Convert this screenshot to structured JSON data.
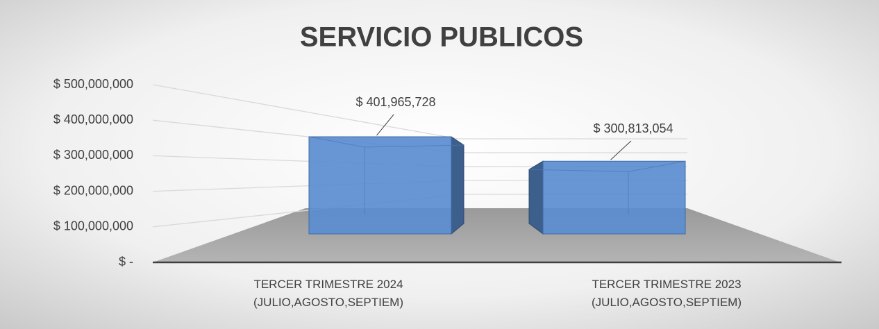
{
  "chart_data": {
    "type": "bar3d",
    "title": "SERVICIO PUBLICOS",
    "categories": [
      "TERCER TRIMESTRE 2024\n(JULIO,AGOSTO,SEPTIEM)",
      "TERCER TRIMESTRE 2023\n(JULIO,AGOSTO,SEPTIEM)"
    ],
    "values": [
      401965728,
      300813054
    ],
    "value_labels": [
      "$ 401,965,728",
      "$ 300,813,054"
    ],
    "color": "#5b8dd0",
    "ylim": [
      0,
      500000000
    ],
    "yticks": [
      {
        "value": 0,
        "label": "$ -"
      },
      {
        "value": 100000000,
        "label": "$ 100,000,000"
      },
      {
        "value": 200000000,
        "label": "$ 200,000,000"
      },
      {
        "value": 300000000,
        "label": "$ 300,000,000"
      },
      {
        "value": 400000000,
        "label": "$ 400,000,000"
      },
      {
        "value": 500000000,
        "label": "$ 500,000,000"
      }
    ],
    "grid": true
  }
}
